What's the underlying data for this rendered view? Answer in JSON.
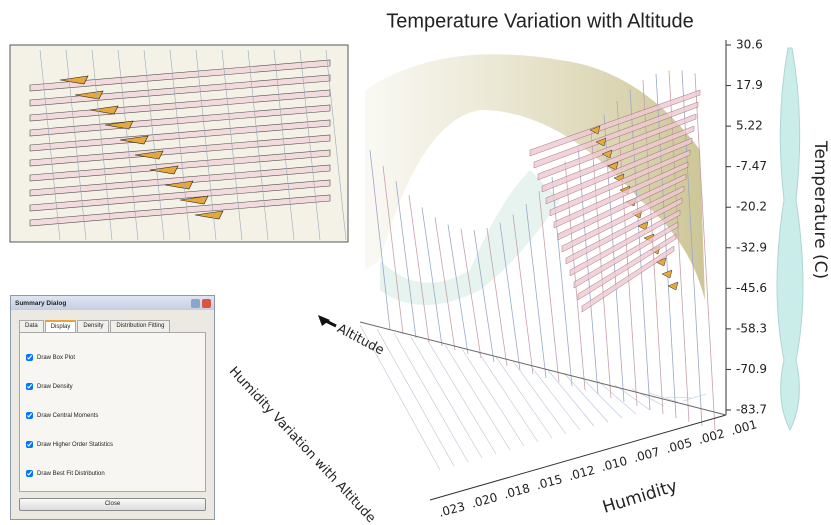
{
  "title": "Temperature Variation with Altitude",
  "temperature_axis": {
    "label": "Temperature (C)",
    "ticks": [
      "30.6",
      "17.9",
      "5.22",
      "-7.47",
      "-20.2",
      "-32.9",
      "-45.6",
      "-58.3",
      "-70.9",
      "-83.7"
    ]
  },
  "humidity_axis": {
    "label": "Humidity",
    "ticks": [
      ".001",
      ".002",
      ".005",
      ".007",
      ".010",
      ".012",
      ".015",
      ".018",
      ".020",
      ".023"
    ]
  },
  "altitude_label": "Altitude",
  "side_label": "Humidity Variation with Altitude",
  "dialog": {
    "title": "Summary Dialog",
    "tabs": [
      "Data",
      "Display",
      "Density",
      "Distribution Fitting"
    ],
    "options": [
      "Draw Box Plot",
      "Draw Density",
      "Draw Central Moments",
      "Draw Higher Order Statistics",
      "Draw Best Fit Distribution"
    ],
    "close": "Close"
  }
}
